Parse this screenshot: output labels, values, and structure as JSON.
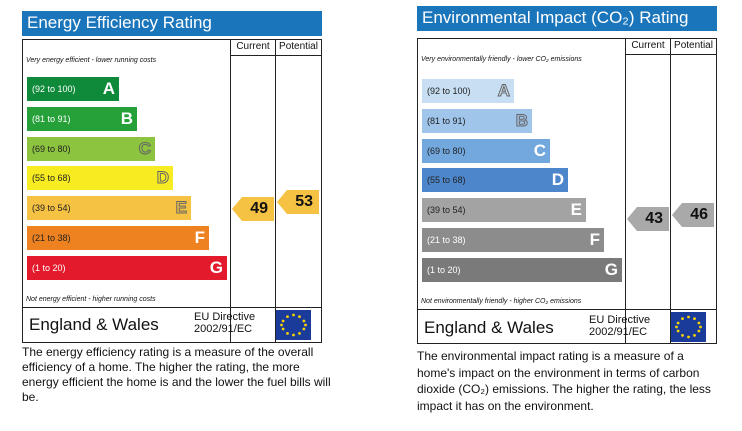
{
  "energy": {
    "title": "Energy Efficiency Rating",
    "col_current": "Current",
    "col_potential": "Potential",
    "top_note": "Very energy efficient - lower running costs",
    "bottom_note": "Not energy efficient - higher running costs",
    "bands": [
      {
        "range": "(92 to 100)",
        "letter": "A",
        "color": "#0f8a3a"
      },
      {
        "range": "(81 to 91)",
        "letter": "B",
        "color": "#26a13a"
      },
      {
        "range": "(69 to 80)",
        "letter": "C",
        "color": "#8cc43f"
      },
      {
        "range": "(55 to 68)",
        "letter": "D",
        "color": "#f7ec22"
      },
      {
        "range": "(39 to 54)",
        "letter": "E",
        "color": "#f6c243"
      },
      {
        "range": "(21 to 38)",
        "letter": "F",
        "color": "#ee8120"
      },
      {
        "range": "(1 to 20)",
        "letter": "G",
        "color": "#e21a2b"
      }
    ],
    "current": "49",
    "potential": "53",
    "arrow_color": "#f6c243",
    "region": "England & Wales",
    "directive_line1": "EU Directive",
    "directive_line2": "2002/91/EC",
    "description": "The energy efficiency rating is a measure of the overall efficiency of a home. The higher the rating, the more energy efficient the home is and the lower the fuel bills will be."
  },
  "environment": {
    "title": "Environmental Impact (CO₂) Rating",
    "col_current": "Current",
    "col_potential": "Potential",
    "top_note": "Very environmentally friendly - lower CO₂ emissions",
    "bottom_note": "Not environmentally friendly - higher CO₂ emissions",
    "bands": [
      {
        "range": "(92 to 100)",
        "letter": "A",
        "color": "#c8def2"
      },
      {
        "range": "(81 to 91)",
        "letter": "B",
        "color": "#9fc5ea"
      },
      {
        "range": "(69 to 80)",
        "letter": "C",
        "color": "#72a8de"
      },
      {
        "range": "(55 to 68)",
        "letter": "D",
        "color": "#4d86ca"
      },
      {
        "range": "(39 to 54)",
        "letter": "E",
        "color": "#a3a3a3"
      },
      {
        "range": "(21 to 38)",
        "letter": "F",
        "color": "#8c8c8c"
      },
      {
        "range": "(1 to 20)",
        "letter": "G",
        "color": "#7a7a7a"
      }
    ],
    "current": "43",
    "potential": "46",
    "arrow_color": "#a9a9a9",
    "region": "England & Wales",
    "directive_line1": "EU Directive",
    "directive_line2": "2002/91/EC",
    "description": "The environmental impact rating is a measure of a home's impact on the environment in terms of carbon dioxide (CO₂) emissions. The higher the rating, the less impact it has on the environment."
  }
}
